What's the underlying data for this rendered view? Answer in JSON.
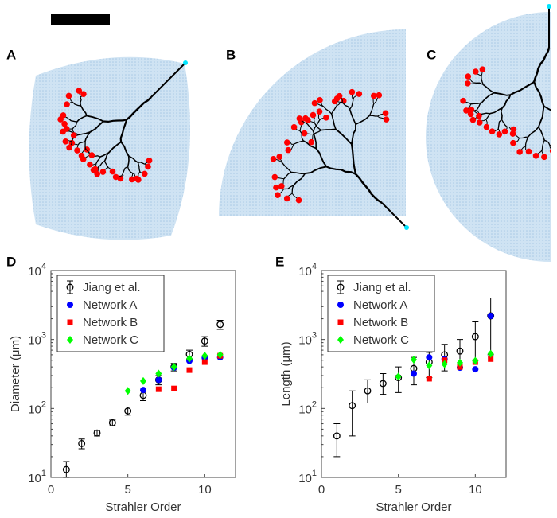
{
  "panel_labels": [
    "A",
    "B",
    "C",
    "D",
    "E"
  ],
  "chart_data": [
    {
      "type": "scatter",
      "xlabel": "Strahler Order",
      "ylabel": "Diameter (μm)",
      "log_y": true,
      "xlim": [
        0,
        12
      ],
      "xticks": [
        0,
        5,
        10
      ],
      "ylim": [
        10,
        10000
      ],
      "yticks": [
        {
          "value": 10,
          "label": "10^1"
        },
        {
          "value": 100,
          "label": "10^2"
        },
        {
          "value": 1000,
          "label": "10^3"
        },
        {
          "value": 10000,
          "label": "10^4"
        }
      ],
      "legend": "upper-left",
      "series": [
        {
          "name": "Jiang et al.",
          "color": "#000000",
          "marker": "circle-open",
          "x": [
            1,
            2,
            3,
            4,
            5,
            6,
            7,
            8,
            9,
            10,
            11
          ],
          "values": [
            13,
            31,
            44,
            62,
            92,
            155,
            260,
            400,
            610,
            950,
            1650
          ],
          "lower": [
            10,
            26,
            40,
            56,
            80,
            130,
            220,
            350,
            520,
            800,
            1400
          ],
          "upper": [
            17,
            36,
            48,
            68,
            105,
            180,
            300,
            450,
            700,
            1100,
            1900
          ]
        },
        {
          "name": "Network A",
          "color": "#0000ff",
          "marker": "circle",
          "x": [
            6,
            7,
            8,
            9,
            10,
            11
          ],
          "values": [
            185,
            260,
            390,
            490,
            540,
            550
          ]
        },
        {
          "name": "Network B",
          "color": "#ff0000",
          "marker": "square",
          "x": [
            7,
            8,
            9,
            10,
            11
          ],
          "values": [
            190,
            195,
            360,
            470,
            580
          ]
        },
        {
          "name": "Network C",
          "color": "#00ff00",
          "marker": "diamond",
          "x": [
            5,
            6,
            7,
            8,
            9,
            10,
            11
          ],
          "values": [
            180,
            250,
            320,
            400,
            530,
            580,
            600
          ]
        }
      ]
    },
    {
      "type": "scatter",
      "xlabel": "Strahler Order",
      "ylabel": "Length (μm)",
      "log_y": true,
      "xlim": [
        0,
        12
      ],
      "xticks": [
        0,
        5,
        10
      ],
      "ylim": [
        10,
        10000
      ],
      "yticks": [
        {
          "value": 10,
          "label": "10^1"
        },
        {
          "value": 100,
          "label": "10^2"
        },
        {
          "value": 1000,
          "label": "10^3"
        },
        {
          "value": 10000,
          "label": "10^4"
        }
      ],
      "legend": "upper-left",
      "series": [
        {
          "name": "Jiang et al.",
          "color": "#000000",
          "marker": "circle-open",
          "x": [
            1,
            2,
            3,
            4,
            5,
            6,
            7,
            8,
            9,
            10,
            11
          ],
          "values": [
            40,
            110,
            180,
            230,
            280,
            380,
            470,
            600,
            680,
            1100,
            2200
          ],
          "lower": [
            20,
            40,
            120,
            160,
            170,
            220,
            280,
            350,
            400,
            500,
            600
          ],
          "upper": [
            60,
            180,
            260,
            320,
            400,
            550,
            650,
            850,
            1000,
            1800,
            4000
          ]
        },
        {
          "name": "Network A",
          "color": "#0000ff",
          "marker": "circle",
          "x": [
            6,
            7,
            8,
            9,
            10,
            11
          ],
          "values": [
            320,
            550,
            520,
            390,
            370,
            2200
          ]
        },
        {
          "name": "Network B",
          "color": "#ff0000",
          "marker": "square",
          "x": [
            7,
            8,
            9,
            10,
            11
          ],
          "values": [
            270,
            500,
            400,
            470,
            520
          ]
        },
        {
          "name": "Network C",
          "color": "#00ff00",
          "marker": "diamond",
          "x": [
            5,
            6,
            7,
            8,
            9,
            10,
            11
          ],
          "values": [
            290,
            510,
            420,
            440,
            460,
            490,
            620
          ]
        }
      ]
    }
  ]
}
